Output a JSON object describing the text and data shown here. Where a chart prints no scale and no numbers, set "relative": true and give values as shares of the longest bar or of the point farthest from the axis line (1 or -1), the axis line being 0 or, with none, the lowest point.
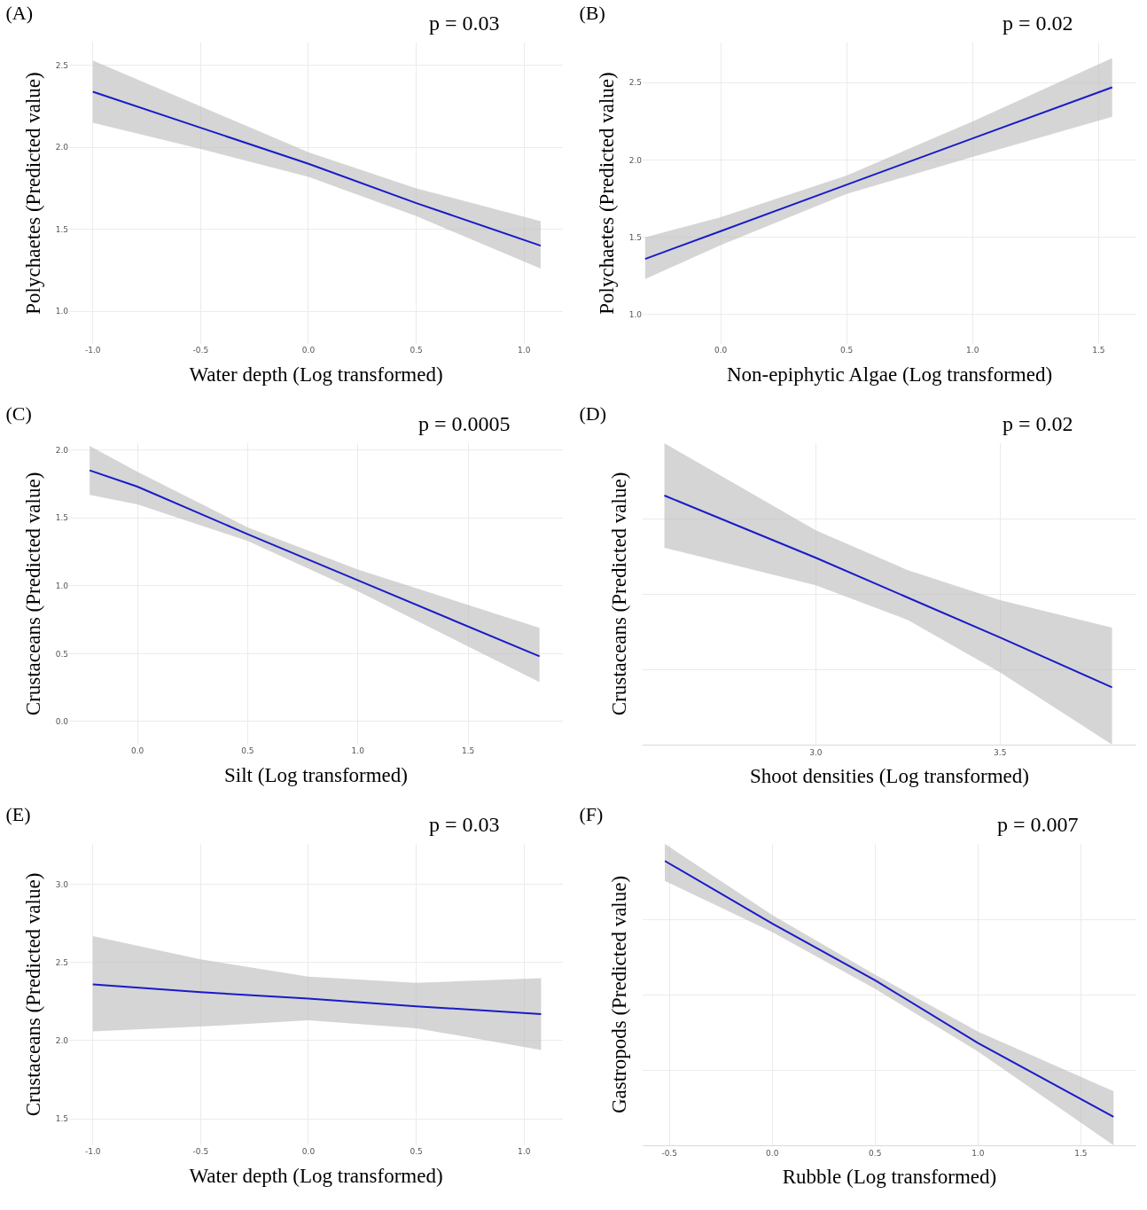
{
  "chart_data": [
    {
      "type": "line",
      "title": "(A)",
      "xlabel": "Water depth (Log transformed)",
      "ylabel": "Polychaetes (Predicted value)",
      "annotations": [
        "p = 0.03"
      ],
      "grid": true,
      "xlim": [
        -1.11,
        1.18
      ],
      "xticks": [
        {
          "value": -1,
          "label": "-1.0"
        },
        {
          "value": -0.5,
          "label": "-0.5"
        },
        {
          "value": 0,
          "label": "0.0"
        },
        {
          "value": 0.5,
          "label": "0.5"
        },
        {
          "value": 1,
          "label": "1.0"
        }
      ],
      "ylim": [
        0.8,
        2.64
      ],
      "yticks": [
        {
          "value": 1,
          "label": "1.0"
        },
        {
          "value": 1.5,
          "label": "1.5"
        },
        {
          "value": 2,
          "label": "2.0"
        },
        {
          "value": 2.5,
          "label": "2.5"
        }
      ],
      "series": [
        {
          "color": "#1a1ac8",
          "x": [
            -1,
            -0.5,
            0,
            0.5,
            1.077
          ],
          "values": [
            2.34,
            2.12,
            1.9,
            1.66,
            1.4
          ],
          "lower": [
            2.15,
            1.99,
            1.82,
            1.58,
            1.26
          ],
          "upper": [
            2.53,
            2.25,
            1.97,
            1.75,
            1.55
          ]
        }
      ]
    },
    {
      "type": "line",
      "title": "(B)",
      "xlabel": "Non-epiphytic Algae (Log transformed)",
      "ylabel": "Polychaetes (Predicted value)",
      "annotations": [
        "p = 0.02"
      ],
      "grid": true,
      "xlim": [
        -0.31,
        1.65
      ],
      "xticks": [
        {
          "value": 0,
          "label": "0.0"
        },
        {
          "value": 0.5,
          "label": "0.5"
        },
        {
          "value": 1,
          "label": "1.0"
        },
        {
          "value": 1.5,
          "label": "1.5"
        }
      ],
      "ylim": [
        0.81,
        2.76
      ],
      "yticks": [
        {
          "value": 1,
          "label": "1.0"
        },
        {
          "value": 1.5,
          "label": "1.5"
        },
        {
          "value": 2,
          "label": "2.0"
        },
        {
          "value": 2.5,
          "label": "2.5"
        }
      ],
      "series": [
        {
          "color": "#1a1ac8",
          "x": [
            -0.3,
            0,
            0.5,
            1,
            1.554
          ],
          "values": [
            1.36,
            1.54,
            1.84,
            2.14,
            2.47
          ],
          "lower": [
            1.23,
            1.45,
            1.78,
            2.02,
            2.28
          ],
          "upper": [
            1.5,
            1.63,
            1.9,
            2.25,
            2.66
          ]
        }
      ]
    },
    {
      "type": "line",
      "title": "(C)",
      "xlabel": "Silt (Log transformed)",
      "ylabel": "Crustaceans (Predicted value)",
      "annotations": [
        "p = 0.0005"
      ],
      "grid": true,
      "xlim": [
        -0.31,
        1.93
      ],
      "xticks": [
        {
          "value": 0,
          "label": "0.0"
        },
        {
          "value": 0.5,
          "label": "0.5"
        },
        {
          "value": 1,
          "label": "1.0"
        },
        {
          "value": 1.5,
          "label": "1.5"
        }
      ],
      "ylim": [
        -0.17,
        2.05
      ],
      "yticks": [
        {
          "value": 0,
          "label": "0.0"
        },
        {
          "value": 0.5,
          "label": "0.5"
        },
        {
          "value": 1,
          "label": "1.0"
        },
        {
          "value": 1.5,
          "label": "1.5"
        },
        {
          "value": 2,
          "label": "2.0"
        }
      ],
      "series": [
        {
          "color": "#1a1ac8",
          "x": [
            -0.217,
            0,
            0.5,
            1,
            1.824
          ],
          "values": [
            1.85,
            1.73,
            1.38,
            1.04,
            0.48
          ],
          "lower": [
            1.67,
            1.6,
            1.33,
            0.96,
            0.29
          ],
          "upper": [
            2.03,
            1.84,
            1.43,
            1.12,
            0.69
          ]
        }
      ]
    },
    {
      "type": "line",
      "title": "(D)",
      "xlabel": "Shoot densities (Log transformed)",
      "ylabel": "Crustaceans (Predicted value)",
      "annotations": [
        "p = 0.02"
      ],
      "grid": true,
      "relative": true,
      "tick_labels": "x",
      "xlim": [
        2.53,
        3.87
      ],
      "xticks": [
        {
          "value": 3,
          "label": "3.0"
        },
        {
          "value": 3.5,
          "label": "3.5"
        }
      ],
      "series": [
        {
          "color": "#1a1ac8",
          "x": [
            2.589,
            3,
            3.25,
            3.5,
            3.804
          ],
          "values": [
            1,
            0.75,
            0.59,
            0.43,
            0.23
          ],
          "lower": [
            0.79,
            0.64,
            0.5,
            0.29,
            0
          ],
          "upper": [
            1.21,
            0.86,
            0.7,
            0.58,
            0.47
          ]
        }
      ]
    },
    {
      "type": "line",
      "title": "(E)",
      "xlabel": "Water depth (Log transformed)",
      "ylabel": "Crustaceans (Predicted value)",
      "annotations": [
        "p = 0.03"
      ],
      "grid": true,
      "xlim": [
        -1.11,
        1.18
      ],
      "xticks": [
        {
          "value": -1,
          "label": "-1.0"
        },
        {
          "value": -0.5,
          "label": "-0.5"
        },
        {
          "value": 0,
          "label": "0.0"
        },
        {
          "value": 0.5,
          "label": "0.5"
        },
        {
          "value": 1,
          "label": "1.0"
        }
      ],
      "ylim": [
        1.33,
        3.26
      ],
      "yticks": [
        {
          "value": 1.5,
          "label": "1.5"
        },
        {
          "value": 2,
          "label": "2.0"
        },
        {
          "value": 2.5,
          "label": "2.5"
        },
        {
          "value": 3,
          "label": "3.0"
        }
      ],
      "series": [
        {
          "color": "#1a1ac8",
          "x": [
            -1,
            -0.5,
            0,
            0.5,
            1.079
          ],
          "values": [
            2.36,
            2.31,
            2.27,
            2.22,
            2.17
          ],
          "lower": [
            2.06,
            2.09,
            2.13,
            2.08,
            1.94
          ],
          "upper": [
            2.67,
            2.52,
            2.41,
            2.37,
            2.4
          ]
        }
      ]
    },
    {
      "type": "line",
      "title": "(F)",
      "xlabel": "Rubble (Log transformed)",
      "ylabel": "Gastropods (Predicted value)",
      "annotations": [
        "p = 0.007"
      ],
      "grid": true,
      "relative": true,
      "tick_labels": "x",
      "xlim": [
        -0.63,
        1.77
      ],
      "xticks": [
        {
          "value": -0.5,
          "label": "-0.5"
        },
        {
          "value": 0,
          "label": "0.0"
        },
        {
          "value": 0.5,
          "label": "0.5"
        },
        {
          "value": 1,
          "label": "1.0"
        },
        {
          "value": 1.5,
          "label": "1.5"
        }
      ],
      "series": [
        {
          "color": "#1a1ac8",
          "x": [
            -0.522,
            0,
            0.5,
            1,
            1.659
          ],
          "values": [
            1,
            0.78,
            0.58,
            0.36,
            0.1
          ],
          "lower": [
            0.93,
            0.75,
            0.55,
            0.33,
            0
          ],
          "upper": [
            1.06,
            0.81,
            0.6,
            0.4,
            0.19
          ]
        }
      ]
    }
  ]
}
